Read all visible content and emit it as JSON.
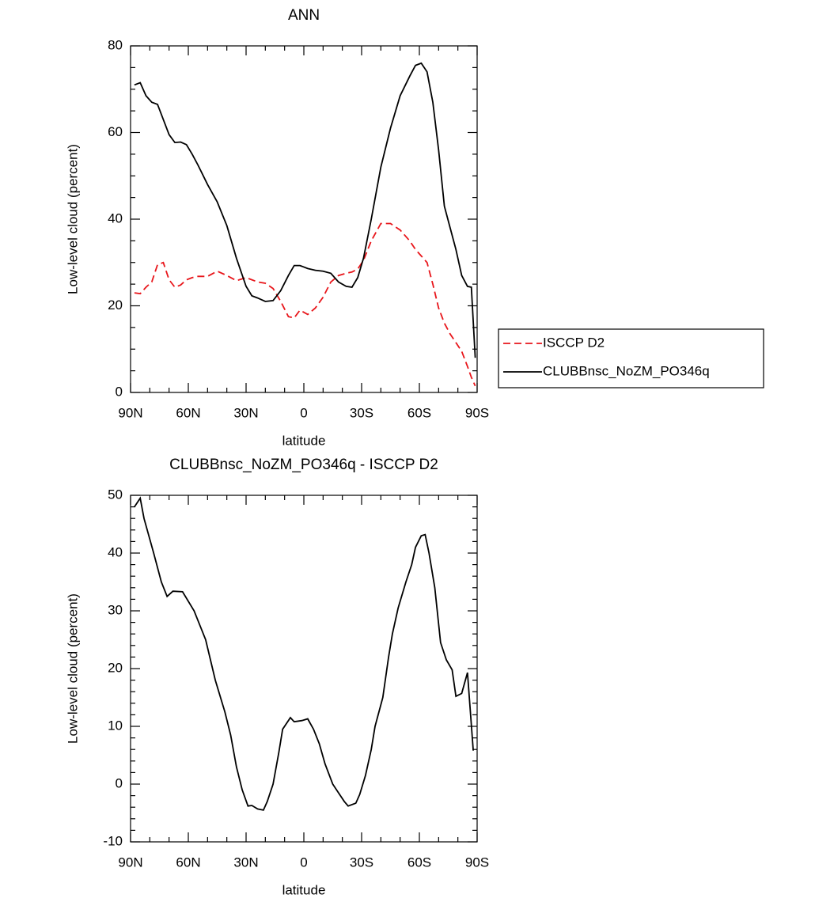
{
  "chart_data": [
    {
      "type": "line",
      "title": "ANN",
      "xlabel": "latitude",
      "ylabel": "Low-level cloud (percent)",
      "x": [
        88,
        85,
        82,
        79,
        76,
        73,
        70,
        67,
        64,
        61,
        58,
        55,
        50,
        45,
        40,
        35,
        30,
        27,
        24,
        20,
        16,
        12,
        8,
        5,
        2,
        -2,
        -6,
        -10,
        -14,
        -18,
        -22,
        -25,
        -28,
        -31,
        -35,
        -40,
        -45,
        -50,
        -55,
        -58,
        -61,
        -64,
        -67,
        -70,
        -73,
        -76,
        -79,
        -82,
        -85,
        -87,
        -89
      ],
      "series": [
        {
          "name": "ISCCP D2",
          "color": "#e8161b",
          "dashed": true,
          "values": [
            23,
            22.8,
            24.3,
            25.5,
            29.5,
            30,
            26,
            24.3,
            24.8,
            26,
            26.5,
            26.8,
            26.8,
            28,
            27,
            25.8,
            26.5,
            26,
            25.5,
            25.2,
            24,
            21,
            17.5,
            17.2,
            19,
            18,
            19.5,
            22,
            25.5,
            27,
            27.5,
            27.8,
            28.5,
            30.5,
            35,
            39,
            39,
            37.5,
            35,
            33,
            31.5,
            30,
            25,
            19.5,
            16,
            13.5,
            11.5,
            9.5,
            6,
            3.5,
            1.5
          ]
        },
        {
          "name": "CLUBBnsc_NoZM_PO346q",
          "color": "#000000",
          "dashed": false,
          "values": [
            71,
            71.5,
            68.5,
            67,
            66.5,
            63,
            59.5,
            57.7,
            57.8,
            57.2,
            55,
            52.5,
            48,
            44,
            38.5,
            31,
            24.5,
            22.3,
            21.8,
            21,
            21.2,
            23.5,
            27,
            29.3,
            29.3,
            28.6,
            28.2,
            28,
            27.5,
            25.5,
            24.5,
            24.3,
            26.5,
            31,
            40,
            52,
            61,
            68.5,
            73,
            75.5,
            76,
            74,
            67,
            56,
            43,
            38,
            33,
            27,
            24.5,
            24.3,
            8
          ]
        }
      ],
      "xlim": [
        90,
        -90
      ],
      "xticks": [
        {
          "value": 90,
          "label": "90N"
        },
        {
          "value": 60,
          "label": "60N"
        },
        {
          "value": 30,
          "label": "30N"
        },
        0,
        {
          "value": -30,
          "label": "30S"
        },
        {
          "value": -60,
          "label": "60S"
        },
        {
          "value": -90,
          "label": "90S"
        }
      ],
      "minor_xticks": [
        80,
        70,
        50,
        40,
        20,
        10,
        -10,
        -20,
        -40,
        -50,
        -70,
        -80
      ],
      "ylim": [
        0,
        80
      ],
      "yticks": [
        0,
        20,
        40,
        60,
        80
      ],
      "minor_yticks": [
        5,
        10,
        15,
        25,
        30,
        35,
        45,
        50,
        55,
        65,
        70,
        75
      ],
      "legend": "outside-right"
    },
    {
      "type": "line",
      "title": "CLUBBnsc_NoZM_PO346q - ISCCP D2",
      "xlabel": "latitude",
      "ylabel": "Low-level cloud (percent)",
      "x": [
        88,
        85,
        83,
        78,
        74,
        71,
        68,
        63,
        57,
        51,
        46,
        41,
        38,
        35,
        32,
        29,
        27,
        24,
        21,
        19,
        16,
        13,
        11,
        7,
        5,
        1,
        -2,
        -5,
        -8,
        -11,
        -15,
        -18,
        -21,
        -23,
        -27,
        -29,
        -32,
        -35,
        -37,
        -41,
        -44,
        -46,
        -49,
        -53,
        -56,
        -58,
        -61,
        -63,
        -65,
        -68,
        -71,
        -74,
        -77,
        -79,
        -82,
        -85,
        -88
      ],
      "series": [
        {
          "color": "#000000",
          "dashed": false,
          "values": [
            48,
            49.5,
            46,
            40,
            35,
            32.5,
            33.4,
            33.3,
            30,
            25,
            18,
            12.5,
            8.5,
            3,
            -1,
            -3.8,
            -3.7,
            -4.3,
            -4.5,
            -3,
            0,
            5.5,
            9.5,
            11.5,
            10.8,
            11,
            11.3,
            9.5,
            7,
            3.5,
            0,
            -1.5,
            -3,
            -3.8,
            -3.3,
            -1.8,
            1.5,
            6,
            10,
            15,
            22,
            26,
            30.5,
            35,
            38,
            41,
            43,
            43.2,
            40,
            34,
            24.5,
            21.5,
            19.8,
            15.2,
            15.7,
            19.3,
            5.8
          ]
        }
      ],
      "xlim": [
        90,
        -90
      ],
      "xticks": [
        {
          "value": 90,
          "label": "90N"
        },
        {
          "value": 60,
          "label": "60N"
        },
        {
          "value": 30,
          "label": "30N"
        },
        0,
        {
          "value": -30,
          "label": "30S"
        },
        {
          "value": -60,
          "label": "60S"
        },
        {
          "value": -90,
          "label": "90S"
        }
      ],
      "minor_xticks": [
        80,
        70,
        50,
        40,
        20,
        10,
        -10,
        -20,
        -40,
        -50,
        -70,
        -80
      ],
      "ylim": [
        -10,
        50
      ],
      "yticks": [
        -10,
        0,
        10,
        20,
        30,
        40,
        50
      ],
      "minor_yticks": [
        -8,
        -6,
        -4,
        -2,
        2,
        4,
        6,
        8,
        12,
        14,
        16,
        18,
        22,
        24,
        26,
        28,
        32,
        34,
        36,
        38,
        42,
        44,
        46,
        48
      ]
    }
  ]
}
